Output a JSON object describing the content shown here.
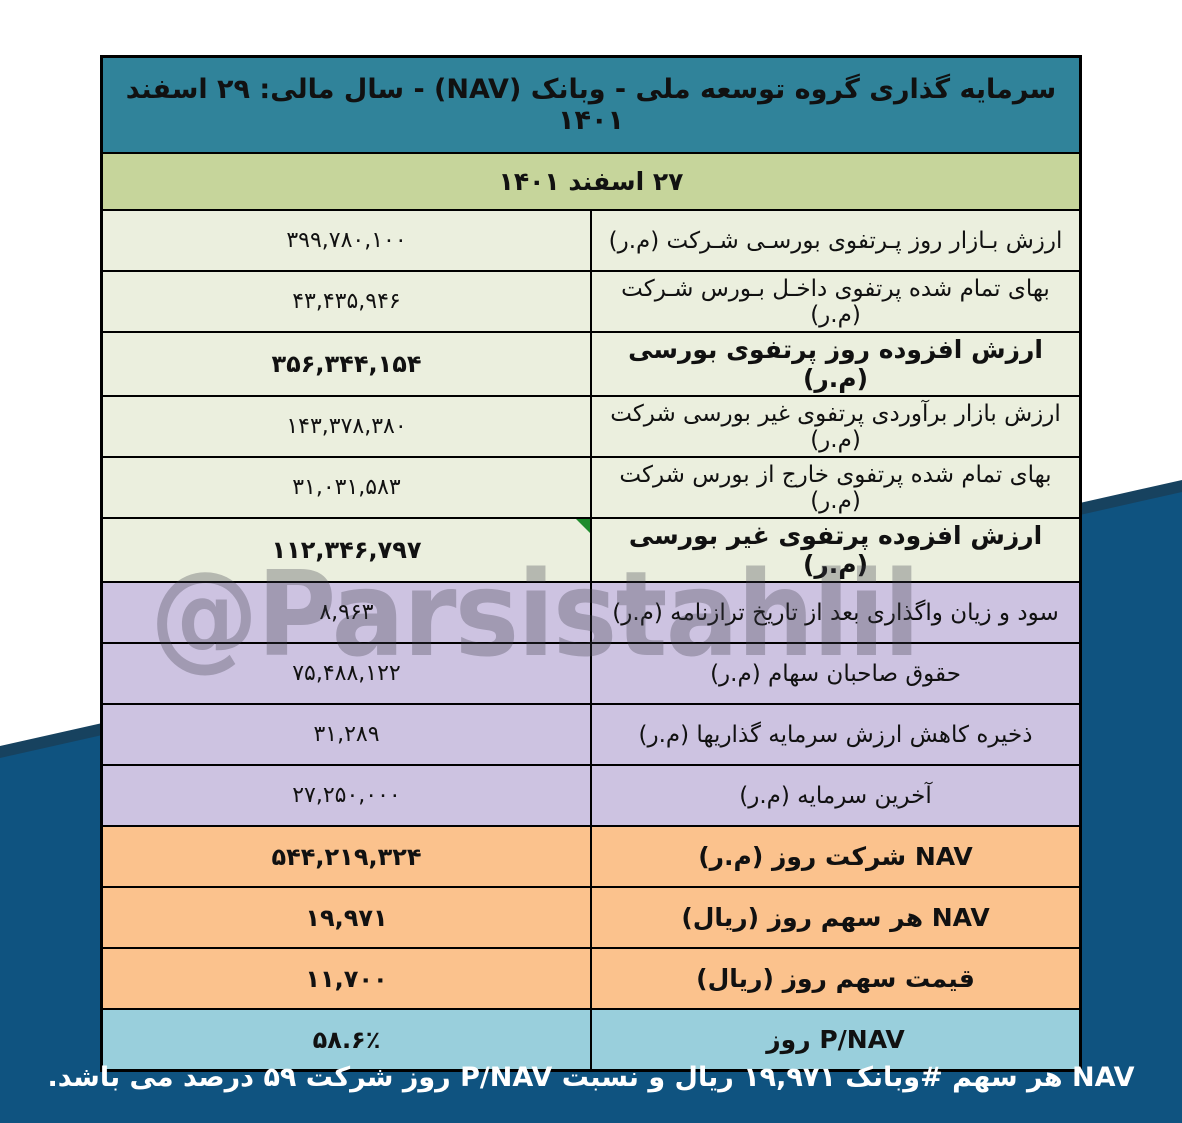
{
  "page": {
    "title": "سرمایه گذاری گروه توسعه ملی - وبانک (NAV) - سال مالی: ۲۹ اسفند ۱۴۰۱",
    "date_header": "۲۷ اسفند ۱۴۰۱",
    "watermark": "@Parsistahlil",
    "footer_note": "NAV هر سهم #وبانک ۱۹,۹۷۱ ریال و نسبت P/NAV روز شرکت ۵۹ درصد می باشد."
  },
  "colors": {
    "header_teal": "#30839a",
    "date_green": "#c6d59b",
    "row_green": "#ebefde",
    "row_purple": "#cdc3e1",
    "row_orange": "#fbc28d",
    "row_blue": "#99cfdc",
    "bg_navy": "#0f5380",
    "bg_navy_dark": "#17425f",
    "marker_green": "#1e8b2d"
  },
  "table": {
    "rows": [
      {
        "label": "ارزش بـازار روز پـرتفوی بورسـی شـرکت (م.ر)",
        "value": "۳۹۹,۷۸۰,۱۰۰",
        "palette": "green",
        "bold": false,
        "marker": false
      },
      {
        "label": "بهای تمام شده پرتفوی داخـل بـورس شـرکت (م.ر)",
        "value": "۴۳,۴۳۵,۹۴۶",
        "palette": "green",
        "bold": false,
        "marker": false
      },
      {
        "label": "ارزش افزوده روز پرتفوی بورسی (م.ر)",
        "value": "۳۵۶,۳۴۴,۱۵۴",
        "palette": "green",
        "bold": true,
        "marker": false
      },
      {
        "label": "ارزش بازار برآوردی پرتفوی غیر بورسی شرکت (م.ر)",
        "value": "۱۴۳,۳۷۸,۳۸۰",
        "palette": "green",
        "bold": false,
        "marker": false
      },
      {
        "label": "بهای تمام شده پرتفوی خارج از بورس شرکت (م.ر)",
        "value": "۳۱,۰۳۱,۵۸۳",
        "palette": "green",
        "bold": false,
        "marker": false
      },
      {
        "label": "ارزش افزوده پرتفوی غیر بورسی (م.ر)",
        "value": "۱۱۲,۳۴۶,۷۹۷",
        "palette": "green",
        "bold": true,
        "marker": true
      },
      {
        "label": "سود و زیان واگذاری بعد از تاریخ ترازنامه (م.ر)",
        "value": "۸,۹۶۳",
        "palette": "purple",
        "bold": false,
        "marker": false
      },
      {
        "label": "حقوق صاحبان سهام (م.ر)",
        "value": "۷۵,۴۸۸,۱۲۲",
        "palette": "purple",
        "bold": false,
        "marker": false
      },
      {
        "label": "ذخیره کاهش ارزش سرمایه گذاریها (م.ر)",
        "value": "۳۱,۲۸۹",
        "palette": "purple",
        "bold": false,
        "marker": false
      },
      {
        "label": "آخرین سرمایه (م.ر)",
        "value": "۲۷,۲۵۰,۰۰۰",
        "palette": "purple",
        "bold": false,
        "marker": false
      },
      {
        "label": "NAV  شرکت روز (م.ر)",
        "value": "۵۴۴,۲۱۹,۳۲۴",
        "palette": "orange",
        "bold": true,
        "marker": false
      },
      {
        "label": "NAV هر سهم روز (ریال)",
        "value": "۱۹,۹۷۱",
        "palette": "orange",
        "bold": true,
        "marker": false
      },
      {
        "label": "قیمت سهم روز (ریال)",
        "value": "۱۱,۷۰۰",
        "palette": "orange",
        "bold": true,
        "marker": false
      },
      {
        "label": "P/NAV روز",
        "value": "۵۸.۶٪",
        "palette": "blue",
        "bold": true,
        "marker": false
      }
    ]
  }
}
